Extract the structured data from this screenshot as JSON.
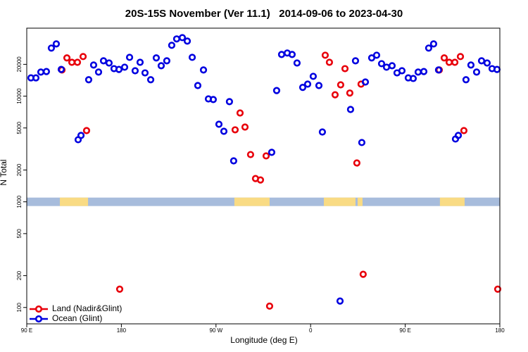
{
  "chart_data": {
    "type": "scatter",
    "title": "20S-15S November (Ver 11.1)   2014-09-06 to 2023-04-30",
    "xlabel": "Longitude (deg E)",
    "ylabel": "N Total",
    "xlim": [
      90,
      540
    ],
    "ylim": [
      70,
      44000
    ],
    "log_y": true,
    "xticks": [
      {
        "value": 90,
        "label": "90 E"
      },
      180,
      {
        "value": 270,
        "label": "90 W"
      },
      {
        "value": 360,
        "label": "0"
      },
      {
        "value": 450,
        "label": "90 E"
      },
      {
        "value": 540,
        "label": "180"
      }
    ],
    "yticks": [
      100,
      200,
      500,
      1000,
      2000,
      5000,
      10000,
      20000
    ],
    "legend": "lower left",
    "surface_strip": {
      "level": 1000,
      "ocean_color": "#a7bcdc",
      "land_color": "#f9db84",
      "land_spans": [
        [
          121.5,
          148.3
        ],
        [
          287.5,
          321.0
        ],
        [
          372.6,
          402.7
        ],
        [
          404.7,
          409.4
        ],
        [
          483.0,
          506.5
        ]
      ]
    },
    "series": [
      {
        "name": "Land (Nadir&Glint)",
        "color": "#e8000b",
        "x": [
          123.5,
          128.2,
          132.9,
          138.2,
          143.6,
          146.9,
          178.4,
          288.2,
          292.9,
          297.6,
          302.9,
          307.6,
          312.3,
          317.7,
          321.0,
          373.9,
          377.9,
          383.3,
          388.6,
          392.7,
          397.3,
          404.0,
          408.0,
          410.0,
          482.4,
          487.1,
          491.8,
          497.2,
          502.5,
          505.8,
          538.0
        ],
        "values": [
          17700,
          23000,
          20900,
          20900,
          23700,
          4720,
          149,
          4800,
          6930,
          5100,
          2800,
          1660,
          1610,
          2720,
          103,
          24400,
          20900,
          10300,
          12800,
          18200,
          10700,
          2330,
          13000,
          206,
          17700,
          23000,
          20900,
          20900,
          23700,
          4720,
          149
        ]
      },
      {
        "name": "Ocean (Glint)",
        "color": "#0000e0",
        "x": [
          94.0,
          98.7,
          103.4,
          108.7,
          113.4,
          118.1,
          122.8,
          138.9,
          141.6,
          148.9,
          153.6,
          158.3,
          163.0,
          168.3,
          173.0,
          177.7,
          183.1,
          187.8,
          193.1,
          197.8,
          202.5,
          207.9,
          213.2,
          217.9,
          223.2,
          227.9,
          232.6,
          238.0,
          242.7,
          247.4,
          252.7,
          258.1,
          262.8,
          267.4,
          272.8,
          277.5,
          282.8,
          286.8,
          323.0,
          327.7,
          332.4,
          337.8,
          342.4,
          347.1,
          352.5,
          357.2,
          362.5,
          367.9,
          371.2,
          388.0,
          398.0,
          402.7,
          408.7,
          412.1,
          418.1,
          422.8,
          427.5,
          432.2,
          437.5,
          442.2,
          446.9,
          452.9,
          457.6,
          462.3,
          467.7,
          472.3,
          477.0,
          481.7,
          497.8,
          500.5,
          507.8,
          512.5,
          517.9,
          522.6,
          527.9,
          532.6,
          537.3
        ],
        "values": [
          14900,
          14900,
          16900,
          17100,
          28500,
          31200,
          17900,
          3870,
          4250,
          14300,
          19700,
          16900,
          21600,
          20600,
          18200,
          17900,
          18800,
          23300,
          17400,
          20900,
          16600,
          14300,
          23000,
          19400,
          21600,
          30300,
          34800,
          35800,
          33200,
          23300,
          12600,
          17700,
          9420,
          9290,
          5420,
          4650,
          8870,
          2440,
          2940,
          11300,
          24800,
          25600,
          24800,
          20600,
          12100,
          13000,
          15400,
          12600,
          4580,
          115,
          7480,
          21600,
          3640,
          13600,
          23000,
          24400,
          20300,
          18800,
          19400,
          16600,
          17400,
          14900,
          14700,
          16900,
          17100,
          28500,
          31200,
          17700,
          3930,
          4250,
          14300,
          19700,
          16900,
          21600,
          20600,
          18200,
          17900
        ]
      }
    ]
  }
}
